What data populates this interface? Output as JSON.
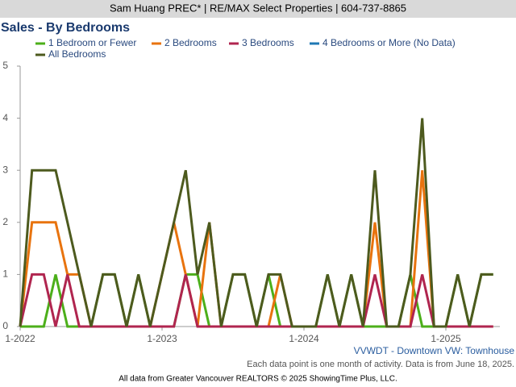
{
  "chart_data": {
    "type": "line",
    "header": "Sam Huang PREC* | RE/MAX Select Properties | 604-737-8865",
    "title": "Sales - By Bedrooms",
    "region": "VVWDT - Downtown VW: Townhouse",
    "note": "Each data point is one month of activity. Data is from June 18, 2025.",
    "footer": "All data from Greater Vancouver REALTORS © 2025 ShowingTime Plus, LLC.",
    "categories": [
      "1-2022",
      null,
      null,
      null,
      null,
      null,
      null,
      null,
      null,
      null,
      null,
      null,
      "1-2023",
      null,
      null,
      null,
      null,
      null,
      null,
      null,
      null,
      null,
      null,
      null,
      "1-2024",
      null,
      null,
      null,
      null,
      null,
      null,
      null,
      null,
      null,
      null,
      null,
      "1-2025",
      null,
      null,
      null,
      null
    ],
    "series": [
      {
        "name": "1 Bedroom or Fewer",
        "color": "#4caf1a",
        "values": [
          0,
          0,
          0,
          1,
          0,
          0,
          0,
          1,
          1,
          0,
          1,
          0,
          0,
          0,
          1,
          1,
          0,
          0,
          1,
          1,
          0,
          1,
          0,
          0,
          0,
          0,
          1,
          0,
          1,
          0,
          0,
          0,
          0,
          1,
          0,
          0,
          0,
          1,
          0,
          1,
          1
        ]
      },
      {
        "name": "2 Bedrooms",
        "color": "#e8730e",
        "values": [
          0,
          2,
          2,
          2,
          1,
          1,
          0,
          0,
          0,
          0,
          0,
          0,
          1,
          2,
          1,
          0,
          2,
          0,
          0,
          0,
          0,
          0,
          1,
          0,
          0,
          0,
          0,
          0,
          0,
          0,
          2,
          0,
          0,
          0,
          3,
          0,
          0,
          0,
          0,
          0,
          0
        ]
      },
      {
        "name": "3 Bedrooms",
        "color": "#b0254f",
        "values": [
          0,
          1,
          1,
          0,
          1,
          0,
          0,
          0,
          0,
          0,
          0,
          0,
          0,
          0,
          1,
          0,
          0,
          0,
          0,
          0,
          0,
          0,
          0,
          0,
          0,
          0,
          0,
          0,
          0,
          0,
          1,
          0,
          0,
          0,
          1,
          0,
          0,
          0,
          0,
          0,
          0
        ]
      },
      {
        "name": "4 Bedrooms or More (No Data)",
        "color": "#1f78b4",
        "values": [
          null,
          null,
          null,
          null,
          null,
          null,
          null,
          null,
          null,
          null,
          null,
          null,
          null,
          null,
          null,
          null,
          null,
          null,
          null,
          null,
          null,
          null,
          null,
          null,
          null,
          null,
          null,
          null,
          null,
          null,
          null,
          null,
          null,
          null,
          null,
          null,
          null,
          null,
          null,
          null,
          null
        ]
      },
      {
        "name": "All Bedrooms",
        "color": "#4d5a1e",
        "values": [
          0,
          3,
          3,
          3,
          2,
          1,
          0,
          1,
          1,
          0,
          1,
          0,
          1,
          2,
          3,
          1,
          2,
          0,
          1,
          1,
          0,
          1,
          1,
          0,
          0,
          0,
          1,
          0,
          1,
          0,
          3,
          0,
          0,
          1,
          4,
          0,
          0,
          1,
          0,
          1,
          1
        ]
      }
    ],
    "ylim": [
      0,
      5
    ],
    "yticks": [
      0,
      1,
      2,
      3,
      4,
      5
    ],
    "grid": false
  }
}
